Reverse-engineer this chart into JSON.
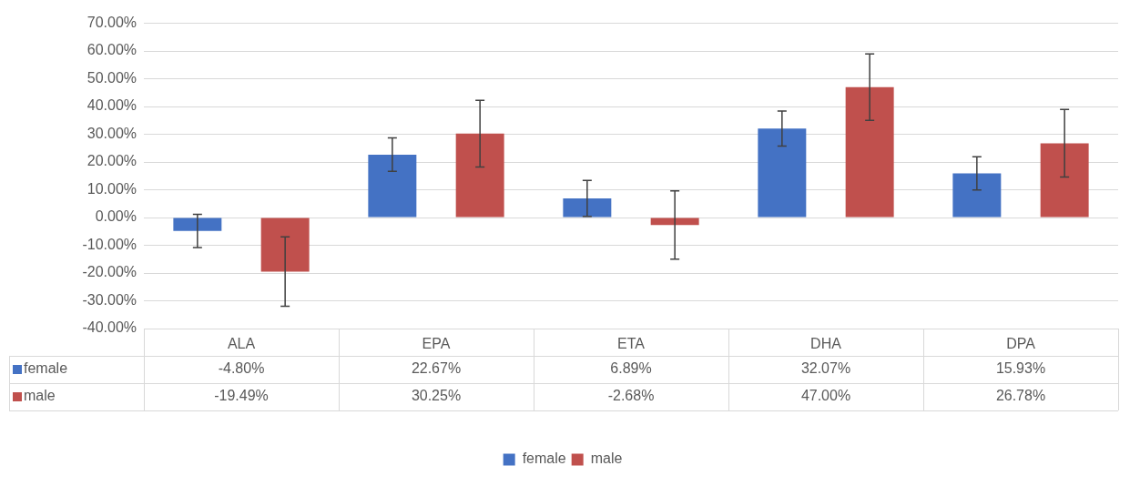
{
  "chart_data": {
    "type": "bar",
    "categories": [
      "ALA",
      "EPA",
      "ETA",
      "DHA",
      "DPA"
    ],
    "series": [
      {
        "name": "female",
        "color": "#4472c4",
        "values": [
          -4.8,
          22.67,
          6.89,
          32.07,
          15.93
        ],
        "errors": [
          6,
          6,
          6.5,
          6.3,
          6
        ],
        "value_labels": [
          "-4.80%",
          "22.67%",
          "6.89%",
          "32.07%",
          "15.93%"
        ]
      },
      {
        "name": "male",
        "color": "#c0504d",
        "values": [
          -19.49,
          30.25,
          -2.68,
          47.0,
          26.78
        ],
        "errors": [
          12.5,
          12,
          12.3,
          12,
          12.2
        ],
        "value_labels": [
          "-19.49%",
          "30.25%",
          "-2.68%",
          "47.00%",
          "26.78%"
        ]
      }
    ],
    "ylim": [
      -40,
      70
    ],
    "yticks": [
      {
        "value": -40,
        "label": "-40.00%"
      },
      {
        "value": -30,
        "label": "-30.00%"
      },
      {
        "value": -20,
        "label": "-20.00%"
      },
      {
        "value": -10,
        "label": "-10.00%"
      },
      {
        "value": 0,
        "label": "0.00%"
      },
      {
        "value": 10,
        "label": "10.00%"
      },
      {
        "value": 20,
        "label": "20.00%"
      },
      {
        "value": 30,
        "label": "30.00%"
      },
      {
        "value": 40,
        "label": "40.00%"
      },
      {
        "value": 50,
        "label": "50.00%"
      },
      {
        "value": 60,
        "label": "60.00%"
      },
      {
        "value": 70,
        "label": "70.00%"
      }
    ],
    "grid": "y",
    "legend": "bottom"
  }
}
